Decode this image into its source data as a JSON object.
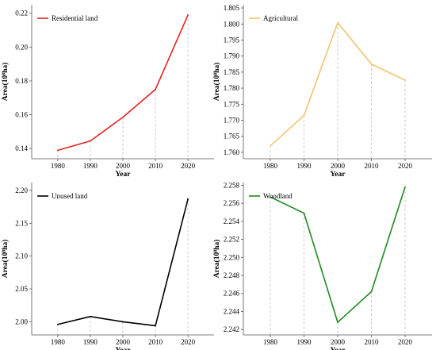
{
  "chart_data": [
    {
      "type": "line",
      "x": [
        1980,
        1990,
        2000,
        2010,
        2020
      ],
      "series": [
        {
          "name": "Residential land",
          "values": [
            0.139,
            0.1445,
            0.1585,
            0.175,
            0.219
          ],
          "color": "#e8211d"
        }
      ],
      "xlabel": "Year",
      "ylabel": "Area(10⁸ha)",
      "yticks": [
        "0.14",
        "0.16",
        "0.18",
        "0.20",
        "0.22"
      ],
      "ylim": [
        0.134,
        0.225
      ],
      "xticks": [
        "1980",
        "1990",
        "2000",
        "2010",
        "2020"
      ],
      "xlim": [
        1972,
        2028
      ],
      "legend": "top-left",
      "grid": "vertical dashed at data points"
    },
    {
      "type": "line",
      "x": [
        1980,
        1990,
        2000,
        2010,
        2020
      ],
      "series": [
        {
          "name": "Agricultural",
          "values": [
            1.762,
            1.7715,
            1.8004,
            1.7875,
            1.7825
          ],
          "color": "#f2c46d"
        }
      ],
      "xlabel": "Year",
      "ylabel": "Area(10⁸ha)",
      "yticks": [
        "1.760",
        "1.765",
        "1.770",
        "1.775",
        "1.780",
        "1.785",
        "1.790",
        "1.795",
        "1.800",
        "1.805"
      ],
      "ylim": [
        1.758,
        1.806
      ],
      "xticks": [
        "1980",
        "1990",
        "2000",
        "2010",
        "2020"
      ],
      "xlim": [
        1972,
        2028
      ],
      "legend": "top-left",
      "grid": "vertical dashed at data points"
    },
    {
      "type": "line",
      "x": [
        1980,
        1990,
        2000,
        2010,
        2020
      ],
      "series": [
        {
          "name": "Unused land",
          "values": [
            1.996,
            2.008,
            2.0,
            1.994,
            2.187
          ],
          "color": "#000000"
        }
      ],
      "xlabel": "Year",
      "ylabel": "Area(10⁸ha)",
      "yticks": [
        "2.00",
        "2.05",
        "2.10",
        "2.15",
        "2.20"
      ],
      "ylim": [
        1.98,
        2.212
      ],
      "xticks": [
        "1980",
        "1990",
        "2000",
        "2010",
        "2020"
      ],
      "xlim": [
        1972,
        2028
      ],
      "legend": "top-left",
      "grid": "vertical dashed at data points"
    },
    {
      "type": "line",
      "x": [
        1980,
        1990,
        2000,
        2010,
        2020
      ],
      "series": [
        {
          "name": "Woodland",
          "values": [
            2.2567,
            2.2549,
            2.2428,
            2.2462,
            2.2578
          ],
          "color": "#1e8a1e"
        }
      ],
      "xlabel": "Year",
      "ylabel": "Area(10⁸ha)",
      "yticks": [
        "2.242",
        "2.244",
        "2.246",
        "2.248",
        "2.250",
        "2.252",
        "2.254",
        "2.256",
        "2.258"
      ],
      "ylim": [
        2.2414,
        2.2583
      ],
      "xticks": [
        "1980",
        "1990",
        "2000",
        "2010",
        "2020"
      ],
      "xlim": [
        1972,
        2028
      ],
      "legend": "top-left",
      "grid": "vertical dashed at data points"
    }
  ]
}
